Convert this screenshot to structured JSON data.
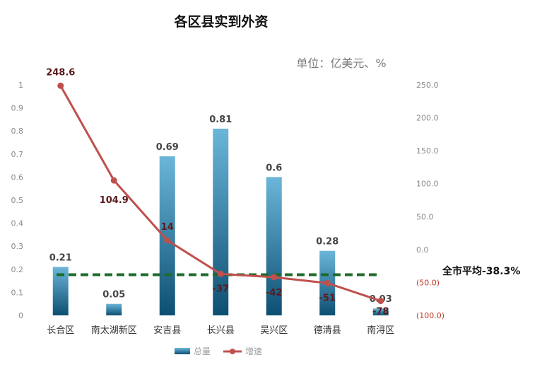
{
  "chart_data": {
    "type": "bar",
    "title": "各区县实到外资",
    "unit_label": "单位：亿美元、%",
    "categories": [
      "长合区",
      "南太湖新区",
      "安吉县",
      "长兴县",
      "吴兴区",
      "德清县",
      "南浔区"
    ],
    "series": [
      {
        "name": "总量",
        "type": "bar",
        "axis": "left",
        "color": "#2e7fa8",
        "values": [
          0.21,
          0.05,
          0.69,
          0.81,
          0.6,
          0.28,
          0.03
        ],
        "labels": [
          "0.21",
          "0.05",
          "0.69",
          "0.81",
          "0.6",
          "0.28",
          "0.03"
        ]
      },
      {
        "name": "增速",
        "type": "line",
        "axis": "right",
        "color": "#c0504d",
        "values": [
          248.6,
          104.9,
          14,
          -37,
          -42,
          -51,
          -78
        ],
        "labels": [
          "248.6",
          "104.9",
          "14",
          "-37",
          "-42",
          "-51",
          "-78"
        ]
      }
    ],
    "y_left": {
      "ylim": [
        0,
        1
      ],
      "ticks": [
        0,
        0.1,
        0.2,
        0.3,
        0.4,
        0.5,
        0.6,
        0.7,
        0.8,
        0.9,
        1
      ],
      "tick_labels": [
        "0",
        "0.1",
        "0.2",
        "0.3",
        "0.4",
        "0.5",
        "0.6",
        "0.7",
        "0.8",
        "0.9",
        "1"
      ]
    },
    "y_right": {
      "ylim": [
        -100,
        250
      ],
      "ticks": [
        250,
        200,
        150,
        100,
        50,
        0,
        -50,
        -100
      ],
      "tick_labels": [
        "250.0",
        "200.0",
        "150.0",
        "100.0",
        "50.0",
        "0.0",
        "(50.0)",
        "(100.0)"
      ]
    },
    "reference_line": {
      "label": "全市平均-38.3%",
      "value": -38.3,
      "axis": "right",
      "color": "#1e6b2a",
      "style": "dashed"
    },
    "legend": {
      "position": "bottom",
      "items": [
        "总量",
        "增速"
      ]
    },
    "grid": false
  }
}
